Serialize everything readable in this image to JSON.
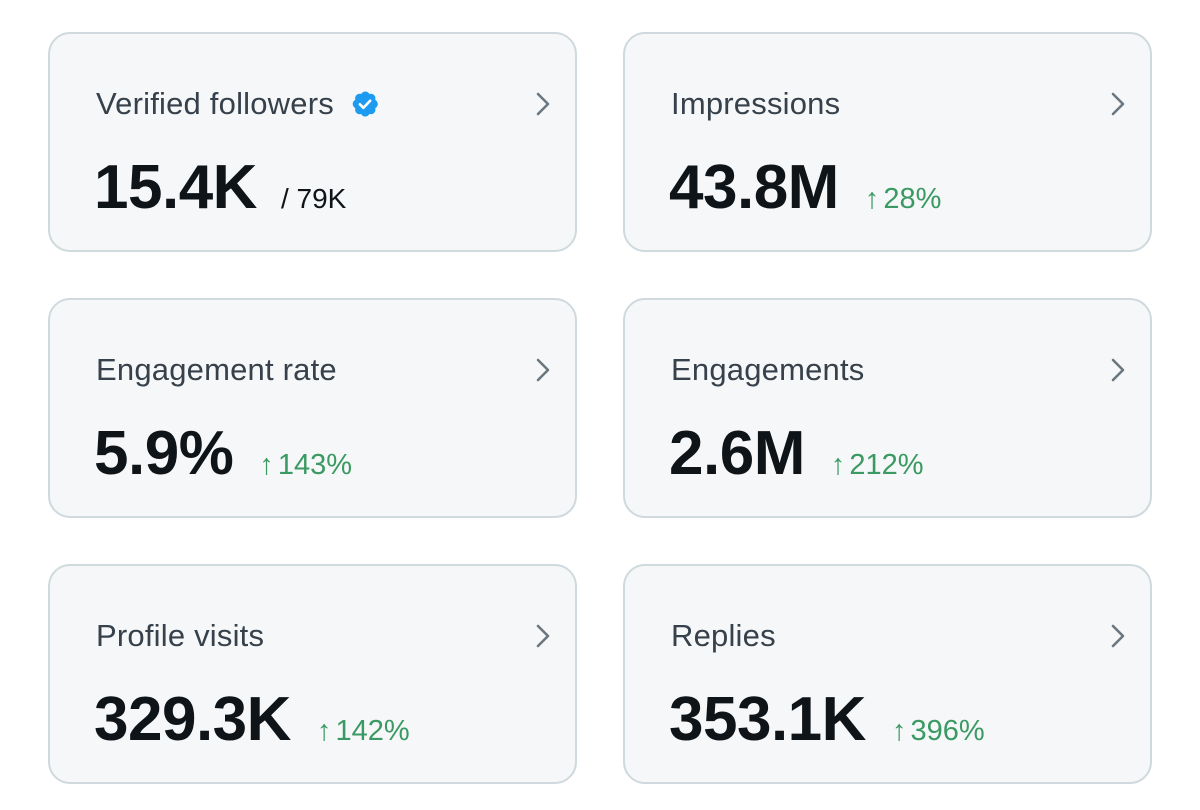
{
  "cards": [
    {
      "title": "Verified followers",
      "value": "15.4K",
      "total": "/ 79K",
      "verified_badge_icon": "verified-badge-icon",
      "badge_color": "#1d9bf0"
    },
    {
      "title": "Impressions",
      "value": "43.8M",
      "change": "28%"
    },
    {
      "title": "Engagement rate",
      "value": "5.9%",
      "change": "143%"
    },
    {
      "title": "Engagements",
      "value": "2.6M",
      "change": "212%"
    },
    {
      "title": "Profile visits",
      "value": "329.3K",
      "change": "142%"
    },
    {
      "title": "Replies",
      "value": "353.1K",
      "change": "396%"
    }
  ],
  "icons": {
    "chevron": "chevron-right-icon",
    "change_arrow": "↑"
  },
  "colors": {
    "card_background": "#f6f7f8",
    "card_border": "#cfd9de",
    "title_text": "#36414b",
    "value_text": "#0f1419",
    "positive_change": "#3b9a63",
    "chevron": "#6b7780"
  }
}
